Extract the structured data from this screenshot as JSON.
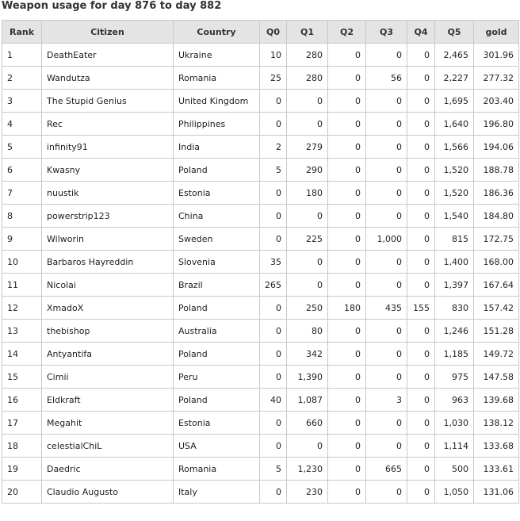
{
  "header": {
    "title": "Weapon usage for day 876 to day 882"
  },
  "table": {
    "columns": [
      "Rank",
      "Citizen",
      "Country",
      "Q0",
      "Q1",
      "Q2",
      "Q3",
      "Q4",
      "Q5",
      "gold"
    ],
    "rows": [
      [
        "1",
        "DeathEater",
        "Ukraine",
        "10",
        "280",
        "0",
        "0",
        "0",
        "2,465",
        "301.96"
      ],
      [
        "2",
        "Wandutza",
        "Romania",
        "25",
        "280",
        "0",
        "56",
        "0",
        "2,227",
        "277.32"
      ],
      [
        "3",
        "The Stupid Genius",
        "United Kingdom",
        "0",
        "0",
        "0",
        "0",
        "0",
        "1,695",
        "203.40"
      ],
      [
        "4",
        "Rec",
        "Philippines",
        "0",
        "0",
        "0",
        "0",
        "0",
        "1,640",
        "196.80"
      ],
      [
        "5",
        "infinity91",
        "India",
        "2",
        "279",
        "0",
        "0",
        "0",
        "1,566",
        "194.06"
      ],
      [
        "6",
        "Kwasny",
        "Poland",
        "5",
        "290",
        "0",
        "0",
        "0",
        "1,520",
        "188.78"
      ],
      [
        "7",
        "nuustik",
        "Estonia",
        "0",
        "180",
        "0",
        "0",
        "0",
        "1,520",
        "186.36"
      ],
      [
        "8",
        "powerstrip123",
        "China",
        "0",
        "0",
        "0",
        "0",
        "0",
        "1,540",
        "184.80"
      ],
      [
        "9",
        "Wilworin",
        "Sweden",
        "0",
        "225",
        "0",
        "1,000",
        "0",
        "815",
        "172.75"
      ],
      [
        "10",
        "Barbaros Hayreddin",
        "Slovenia",
        "35",
        "0",
        "0",
        "0",
        "0",
        "1,400",
        "168.00"
      ],
      [
        "11",
        "Nicolai",
        "Brazil",
        "265",
        "0",
        "0",
        "0",
        "0",
        "1,397",
        "167.64"
      ],
      [
        "12",
        "XmadoX",
        "Poland",
        "0",
        "250",
        "180",
        "435",
        "155",
        "830",
        "157.42"
      ],
      [
        "13",
        "thebishop",
        "Australia",
        "0",
        "80",
        "0",
        "0",
        "0",
        "1,246",
        "151.28"
      ],
      [
        "14",
        "Antyantifa",
        "Poland",
        "0",
        "342",
        "0",
        "0",
        "0",
        "1,185",
        "149.72"
      ],
      [
        "15",
        "Cimii",
        "Peru",
        "0",
        "1,390",
        "0",
        "0",
        "0",
        "975",
        "147.58"
      ],
      [
        "16",
        "Eldkraft",
        "Poland",
        "40",
        "1,087",
        "0",
        "3",
        "0",
        "963",
        "139.68"
      ],
      [
        "17",
        "Megahit",
        "Estonia",
        "0",
        "660",
        "0",
        "0",
        "0",
        "1,030",
        "138.12"
      ],
      [
        "18",
        "celestialChiL",
        "USA",
        "0",
        "0",
        "0",
        "0",
        "0",
        "1,114",
        "133.68"
      ],
      [
        "19",
        "Daedric",
        "Romania",
        "5",
        "1,230",
        "0",
        "665",
        "0",
        "500",
        "133.61"
      ],
      [
        "20",
        "Claudio Augusto",
        "Italy",
        "0",
        "230",
        "0",
        "0",
        "0",
        "1,050",
        "131.06"
      ]
    ]
  }
}
